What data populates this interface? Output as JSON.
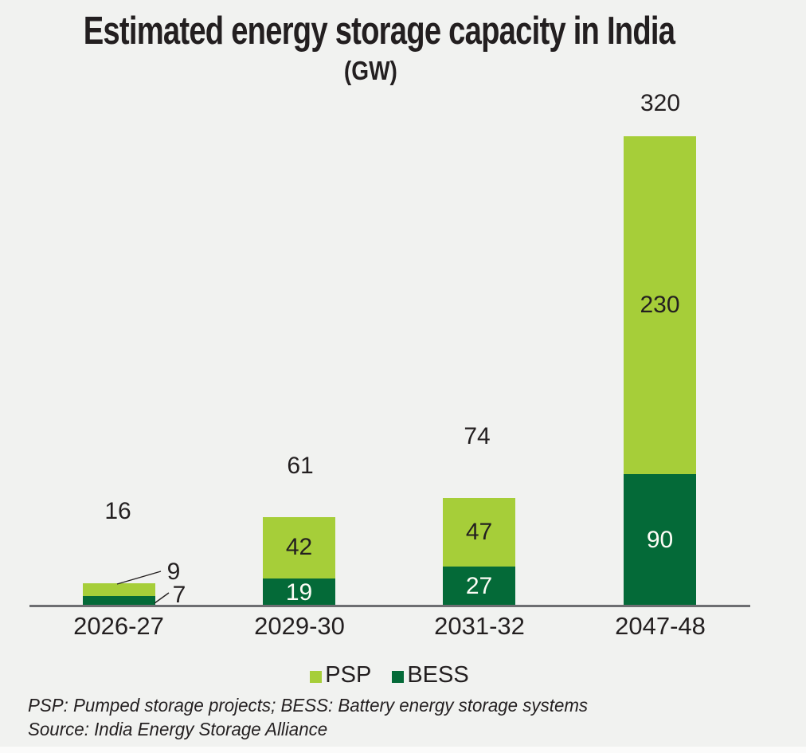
{
  "title": "Estimated energy storage capacity in India",
  "subtitle": "(GW)",
  "colors": {
    "psp": "#a6ce39",
    "bess": "#046a38",
    "background": "#f1f2f0",
    "axis": "#6d6e71",
    "text": "#231f20"
  },
  "legend": [
    {
      "label": "PSP",
      "color": "#a6ce39"
    },
    {
      "label": "BESS",
      "color": "#046a38"
    }
  ],
  "footnote": "PSP: Pumped storage projects; BESS: Battery energy storage systems",
  "source": "Source: India Energy Storage Alliance",
  "chart_data": {
    "type": "bar",
    "stacked": true,
    "title": "Estimated energy storage capacity in India",
    "unit": "GW",
    "categories": [
      "2026-27",
      "2029-30",
      "2031-32",
      "2047-48"
    ],
    "series": [
      {
        "name": "PSP",
        "color": "#a6ce39",
        "values": [
          9,
          42,
          47,
          230
        ]
      },
      {
        "name": "BESS",
        "color": "#046a38",
        "values": [
          7,
          19,
          27,
          90
        ]
      }
    ],
    "totals": [
      16,
      61,
      74,
      320
    ],
    "ylim": [
      0,
      320
    ],
    "grid": false,
    "legend_position": "bottom",
    "value_labels": "inside-segments; first bar labeled via leader lines"
  }
}
